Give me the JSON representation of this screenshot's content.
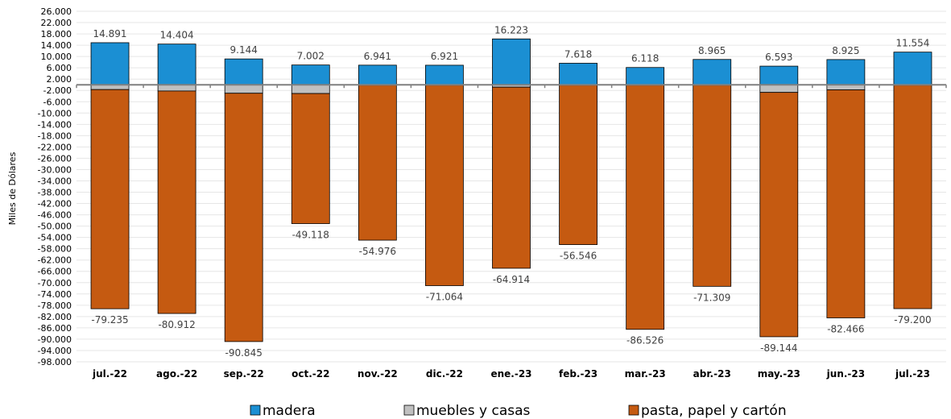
{
  "chart_data": {
    "type": "bar",
    "stacked": true,
    "ylabel": "Miles de Dólares",
    "xlabel": "",
    "title": "",
    "ylim": [
      -98000,
      26000
    ],
    "ytick_step": 4000,
    "ytick_labels": [
      "26.000",
      "22.000",
      "18.000",
      "14.000",
      "10.000",
      "6.000",
      "2.000",
      "-2.000",
      "-6.000",
      "-10.000",
      "-14.000",
      "-18.000",
      "-22.000",
      "-26.000",
      "-30.000",
      "-34.000",
      "-38.000",
      "-42.000",
      "-46.000",
      "-50.000",
      "-54.000",
      "-58.000",
      "-62.000",
      "-66.000",
      "-70.000",
      "-74.000",
      "-78.000",
      "-82.000",
      "-86.000",
      "-90.000",
      "-94.000",
      "-98.000"
    ],
    "grid": true,
    "legend_position": "bottom",
    "categories": [
      "jul.-22",
      "ago.-22",
      "sep.-22",
      "oct.-22",
      "nov.-22",
      "dic.-22",
      "ene.-23",
      "feb.-23",
      "mar.-23",
      "abr.-23",
      "may.-23",
      "jun.-23",
      "jul.-23"
    ],
    "series": [
      {
        "name": "madera",
        "color": "#1b8fd3",
        "values": [
          14891,
          14404,
          9144,
          7002,
          6941,
          6921,
          16223,
          7618,
          6118,
          8965,
          6593,
          8925,
          11554
        ]
      },
      {
        "name": "muebles y casas",
        "color": "#c0c0c0",
        "values": [
          -1700,
          -2200,
          -3000,
          -3100,
          -150,
          -150,
          -850,
          -150,
          -150,
          -150,
          -2700,
          -1800,
          -150
        ]
      },
      {
        "name": "pasta, papel y cartón",
        "color": "#c55a11",
        "values": [
          -77535,
          -78712,
          -87845,
          -46018,
          -54826,
          -70914,
          -64064,
          -56396,
          -86376,
          -71159,
          -86444,
          -80666,
          -79050
        ]
      }
    ],
    "top_labels": [
      "14.891",
      "14.404",
      "9.144",
      "7.002",
      "6.941",
      "6.921",
      "16.223",
      "7.618",
      "6.118",
      "8.965",
      "6.593",
      "8.925",
      "11.554"
    ],
    "bottom_labels": [
      "-79.235",
      "-80.912",
      "-90.845",
      "-49.118",
      "-54.976",
      "-71.064",
      "-64.914",
      "-56.546",
      "-86.526",
      "-71.309",
      "-89.144",
      "-82.466",
      "-79.200"
    ],
    "bottom_totals": [
      -79235,
      -80912,
      -90845,
      -49118,
      -54976,
      -71064,
      -64914,
      -56546,
      -86526,
      -71309,
      -89144,
      -82466,
      -79200
    ]
  }
}
